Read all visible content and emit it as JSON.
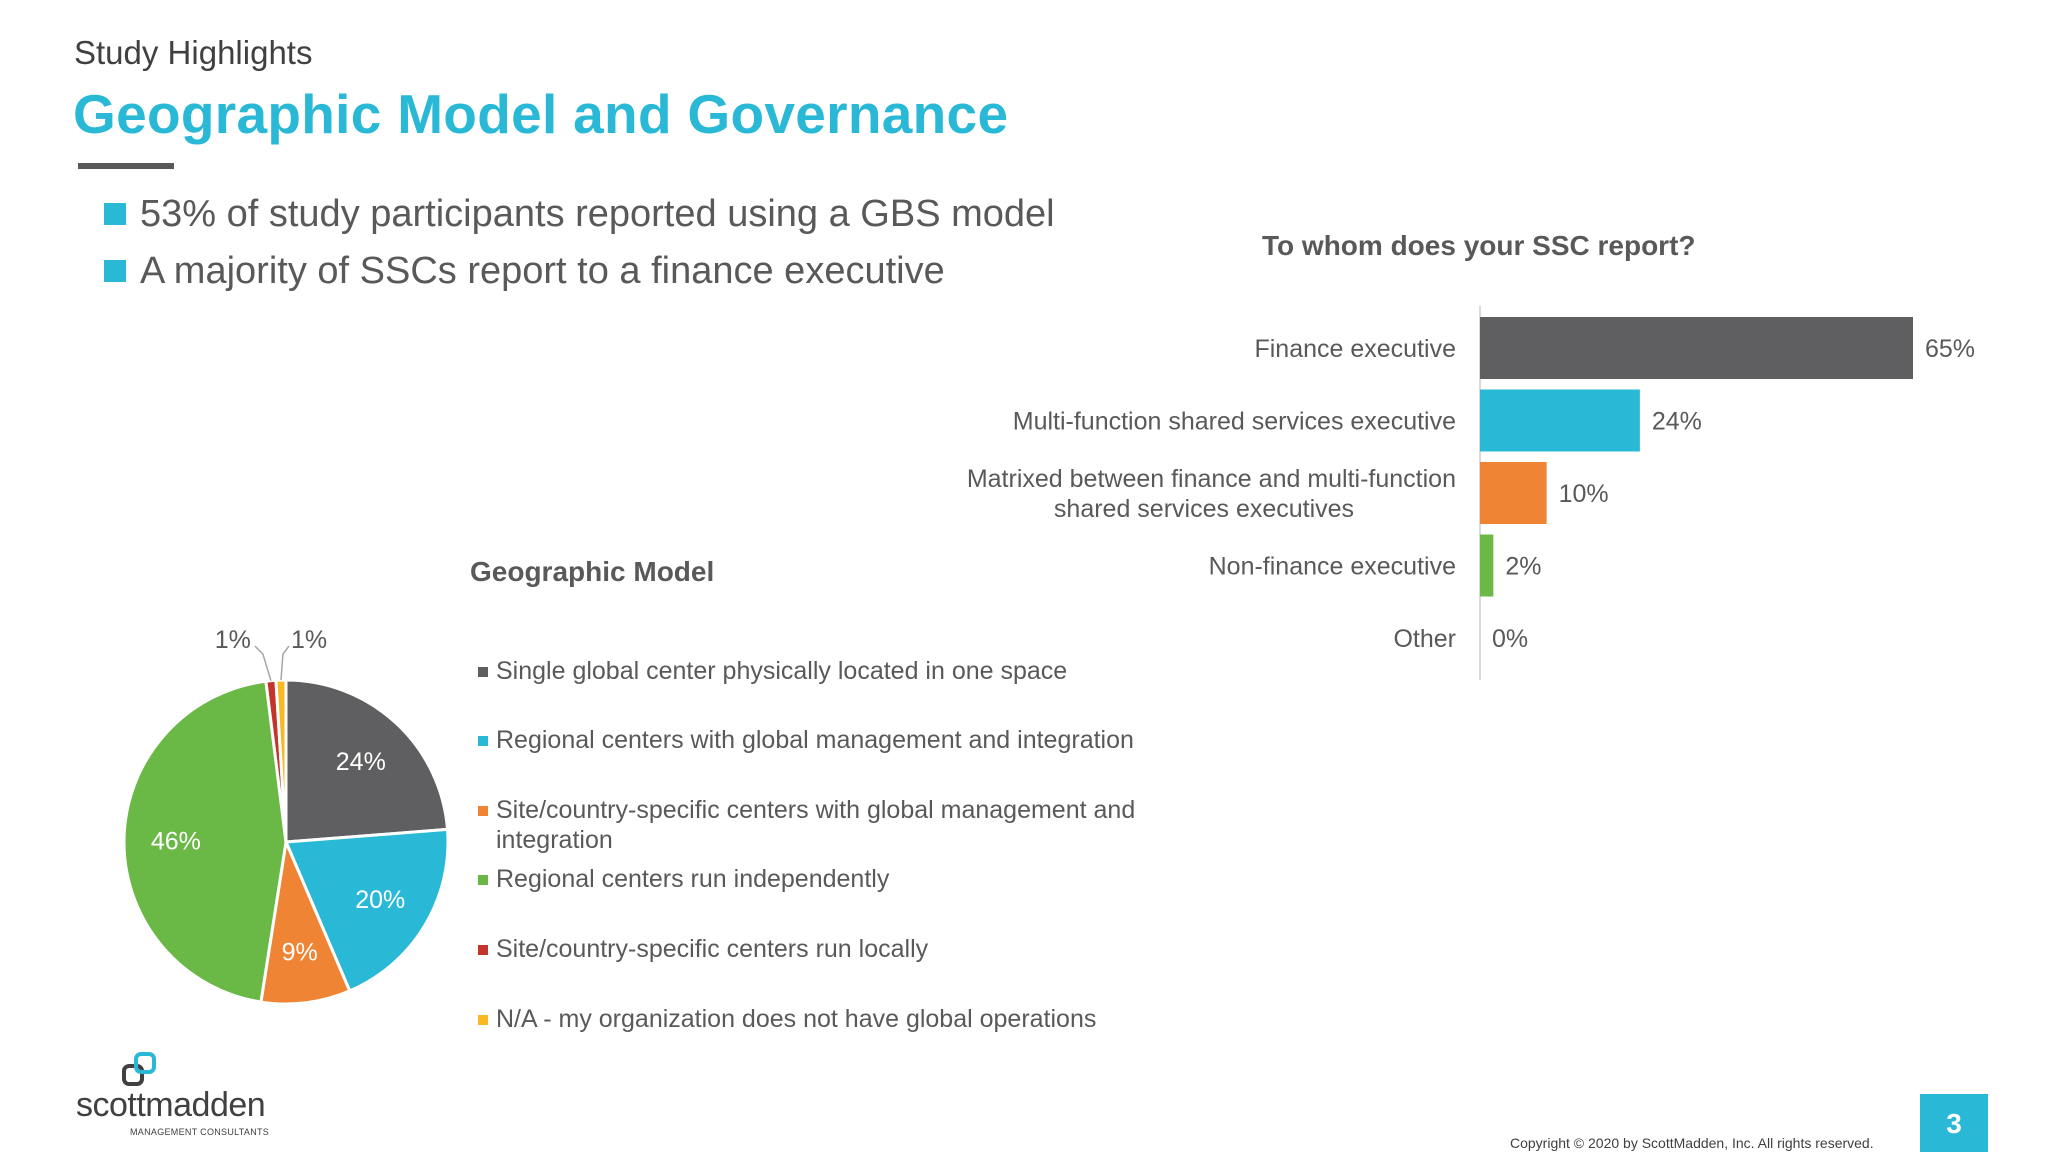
{
  "header": {
    "kicker": "Study Highlights",
    "title": "Geographic Model and Governance"
  },
  "bullets": [
    "53% of study participants reported using a GBS model",
    "A majority of SSCs report to a finance executive"
  ],
  "colors": {
    "accent": "#29b8d6",
    "dark_gray": "#5f5f61",
    "orange": "#ef8434",
    "green": "#6ab947",
    "red": "#c3352b",
    "yellow": "#f7b924"
  },
  "chart_data": [
    {
      "type": "pie",
      "title": "Geographic Model",
      "categories": [
        "Single global center physically located in one space",
        "Regional centers with global management and integration",
        "Site/country-specific centers with global management and integration",
        "Regional centers run independently",
        "Site/country-specific centers run locally",
        "N/A - my organization does not have global operations"
      ],
      "values": [
        24,
        20,
        9,
        46,
        1,
        1
      ],
      "data_labels": [
        "24%",
        "20%",
        "9%",
        "46%",
        "1%",
        "1%"
      ],
      "colors": [
        "#5f5f61",
        "#29b8d6",
        "#ef8434",
        "#6ab947",
        "#c3352b",
        "#f7b924"
      ],
      "legend": "right"
    },
    {
      "type": "bar",
      "orientation": "horizontal",
      "title": "To whom does your SSC report?",
      "categories": [
        "Finance executive",
        "Multi-function shared services executive",
        "Matrixed between finance and multi-function shared services executives",
        "Non-finance executive",
        "Other"
      ],
      "values": [
        65,
        24,
        10,
        2,
        0
      ],
      "data_labels": [
        "65%",
        "24%",
        "10%",
        "2%",
        "0%"
      ],
      "colors": [
        "#5f5f61",
        "#29b8d6",
        "#ef8434",
        "#6ab947",
        "#5f5f61"
      ],
      "xlim": [
        0,
        100
      ]
    }
  ],
  "footer": {
    "logo_word": "scottmadden",
    "logo_sub": "MANAGEMENT CONSULTANTS",
    "copyright": "Copyright © 2020 by ScottMadden, Inc. All rights reserved.",
    "page_number": "3"
  }
}
